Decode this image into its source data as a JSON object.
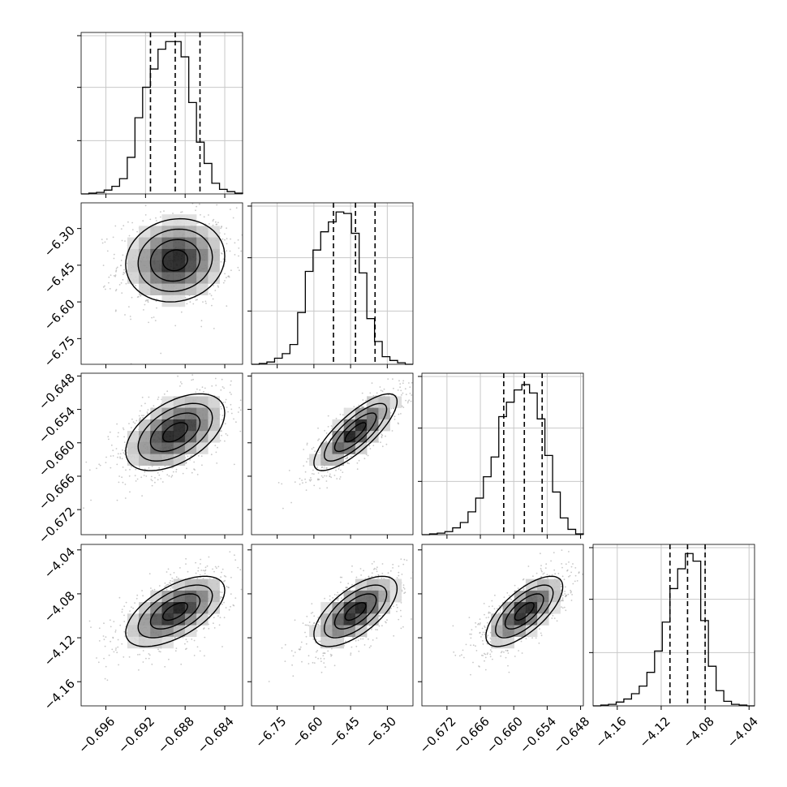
{
  "chart_data": {
    "type": "corner",
    "n_params": 4,
    "parameters": [
      {
        "xlim": [
          -0.6985,
          -0.6822
        ],
        "ticks": [
          -0.696,
          -0.692,
          -0.688,
          -0.684
        ],
        "tick_labels": [
          "−0.696",
          "−0.692",
          "−0.688",
          "−0.684"
        ],
        "quantiles": [
          -0.6915,
          -0.689,
          -0.6865
        ]
      },
      {
        "xlim": [
          -6.855,
          -6.195
        ],
        "ticks": [
          -6.75,
          -6.6,
          -6.45,
          -6.3
        ],
        "tick_labels": [
          "−6.75",
          "−6.60",
          "−6.45",
          "−6.30"
        ],
        "quantiles": [
          -6.52,
          -6.43,
          -6.35
        ]
      },
      {
        "xlim": [
          -0.6765,
          -0.6475
        ],
        "ticks": [
          -0.672,
          -0.666,
          -0.66,
          -0.654,
          -0.648
        ],
        "tick_labels": [
          "−0.672",
          "−0.666",
          "−0.660",
          "−0.654",
          "−0.648"
        ],
        "quantiles": [
          -0.6618,
          -0.6581,
          -0.6549
        ]
      },
      {
        "xlim": [
          -4.182,
          -4.035
        ],
        "ticks": [
          -4.16,
          -4.12,
          -4.08,
          -4.04
        ],
        "tick_labels": [
          "−4.16",
          "−4.12",
          "−4.08",
          "−4.04"
        ],
        "quantiles": [
          -4.112,
          -4.096,
          -4.08
        ]
      }
    ],
    "histograms": [
      [
        0,
        1,
        2,
        5,
        10,
        20,
        48,
        100,
        140,
        164,
        190,
        200,
        200,
        180,
        120,
        68,
        40,
        14,
        6,
        3,
        1
      ],
      [
        0,
        1,
        3,
        8,
        14,
        26,
        68,
        122,
        150,
        174,
        187,
        200,
        198,
        172,
        120,
        60,
        30,
        10,
        5,
        2,
        0
      ],
      [
        0,
        1,
        2,
        4,
        9,
        16,
        30,
        48,
        76,
        102,
        155,
        174,
        190,
        197,
        186,
        152,
        104,
        56,
        22,
        7,
        1
      ],
      [
        0,
        1,
        2,
        5,
        9,
        16,
        26,
        44,
        72,
        110,
        154,
        180,
        200,
        190,
        112,
        52,
        20,
        6,
        2,
        1,
        0
      ]
    ],
    "hist_ymax": 212,
    "correlation": [
      [
        1.0,
        0.1,
        0.5,
        0.6
      ],
      [
        0.1,
        1.0,
        0.8,
        0.65
      ],
      [
        0.5,
        0.8,
        1.0,
        0.7
      ],
      [
        0.6,
        0.65,
        0.7,
        1.0
      ]
    ],
    "contour_levels_sigma": [
      0.5,
      1.0,
      1.5,
      2.0
    ],
    "grid": true,
    "hist_style": "step",
    "quantile_lines": "dashed",
    "colors": {
      "line": "#000000",
      "points": "#9a9a9a",
      "grid": "#c8c8c8",
      "background": "#ffffff"
    }
  }
}
